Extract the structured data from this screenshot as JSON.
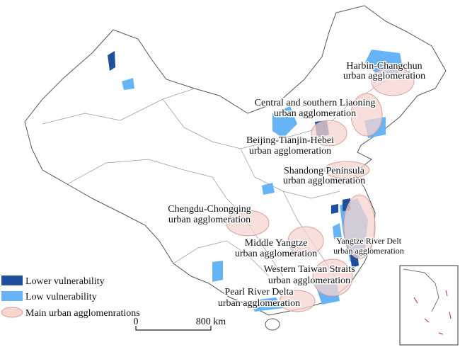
{
  "map": {
    "labels": [
      [
        "Harbin-Changchun",
        "urban agglomeration"
      ],
      [
        "Central and southern Liaoning",
        "urban agglomeration"
      ],
      [
        "Beijing-Tianjin-Hebei",
        "urban agglomeration"
      ],
      [
        "Shandong Peninsula",
        "urban agglomeration"
      ],
      [
        "Chengdu-Chongqing",
        "urban agglomeration"
      ],
      [
        "Middle Yangtze",
        "urban agglomeration"
      ],
      [
        "Yangtze River Delt",
        "urban agglomeration"
      ],
      [
        "Western Taiwan Straits",
        "urban agglomeration"
      ],
      [
        "Pearl River Delta",
        "urban agglomeration"
      ]
    ],
    "legend": [
      "Lower vulnerability",
      "Low vulnerability",
      "Main urban agglomenrations"
    ],
    "scale": {
      "start": "0",
      "end": "800 km"
    }
  }
}
